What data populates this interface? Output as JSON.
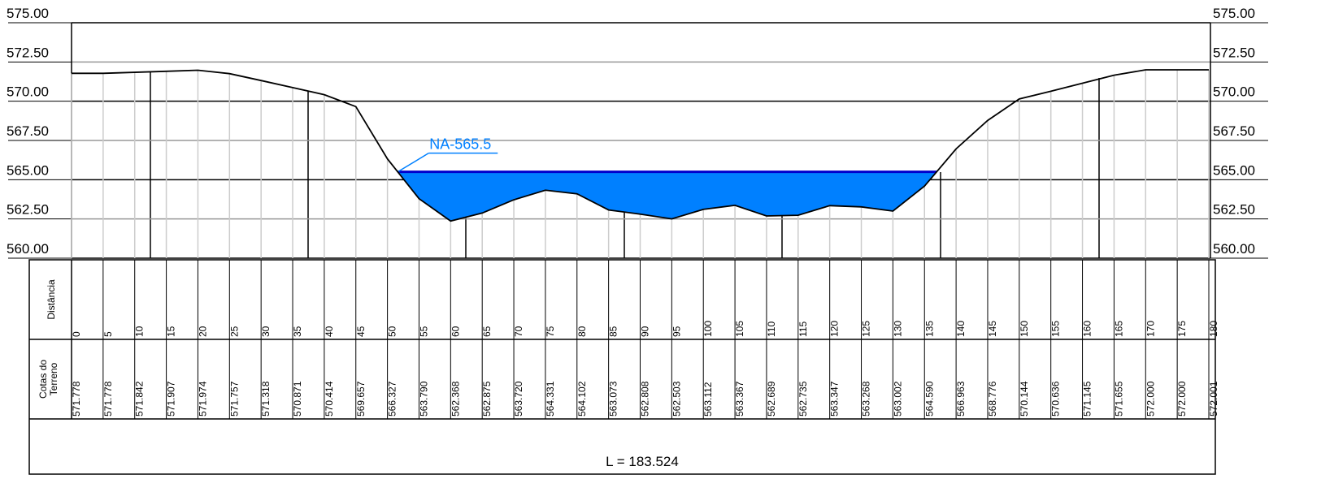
{
  "chart_data": {
    "type": "line",
    "x": [
      0,
      5,
      10,
      15,
      20,
      25,
      30,
      35,
      40,
      45,
      50,
      55,
      60,
      65,
      70,
      75,
      80,
      85,
      90,
      95,
      100,
      105,
      110,
      115,
      120,
      125,
      130,
      135,
      140,
      145,
      150,
      155,
      160,
      165,
      170,
      175,
      180
    ],
    "values": [
      571.778,
      571.778,
      571.842,
      571.907,
      571.974,
      571.757,
      571.318,
      570.871,
      570.414,
      569.657,
      566.327,
      563.79,
      562.368,
      562.875,
      563.72,
      564.331,
      564.102,
      563.073,
      562.808,
      562.503,
      563.112,
      563.367,
      562.689,
      562.735,
      563.347,
      563.268,
      563.002,
      564.59,
      566.963,
      568.776,
      570.144,
      570.636,
      571.145,
      571.655,
      572.0,
      572.0,
      572.001
    ],
    "value_labels": [
      "571.778",
      "571.778",
      "571.842",
      "571.907",
      "571.974",
      "571.757",
      "571.318",
      "570.871",
      "570.414",
      "569.657",
      "566.327",
      "563.790",
      "562.368",
      "562.875",
      "563.720",
      "564.331",
      "564.102",
      "563.073",
      "562.808",
      "562.503",
      "563.112",
      "563.367",
      "562.689",
      "562.735",
      "563.347",
      "563.268",
      "563.002",
      "564.590",
      "566.963",
      "568.776",
      "570.144",
      "570.636",
      "571.145",
      "571.655",
      "572.000",
      "572.000",
      "572.001"
    ],
    "color": "#000000",
    "xlim": [
      0,
      180
    ],
    "ylim": [
      560,
      575
    ],
    "yticks": [
      {
        "value": 560,
        "label": "560.00"
      },
      {
        "value": 562.5,
        "label": "562.50"
      },
      {
        "value": 565,
        "label": "565.00"
      },
      {
        "value": 567.5,
        "label": "567.50"
      },
      {
        "value": 570,
        "label": "570.00"
      },
      {
        "value": 572.5,
        "label": "572.50"
      },
      {
        "value": 575,
        "label": "575.00"
      }
    ],
    "grid": true,
    "water_level": 565.5,
    "water_color": "#0080ff",
    "annotation": "NA-565.5",
    "row_distance_label": "Distância",
    "row_elevation_label": [
      "Cotas do",
      "Terreno"
    ],
    "length_label": "L = 183.524"
  }
}
